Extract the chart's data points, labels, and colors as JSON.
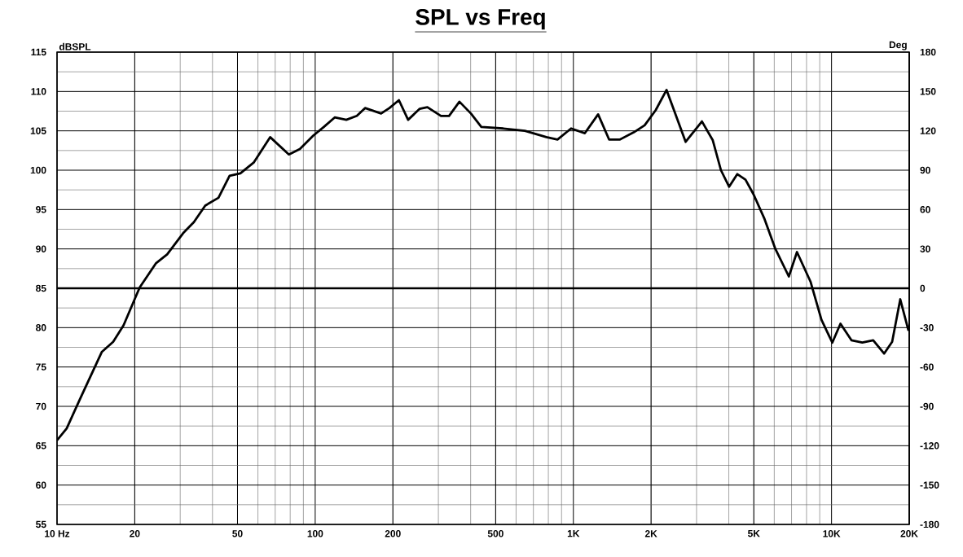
{
  "chart_data": {
    "type": "line",
    "title": "SPL vs Freq",
    "ylabel": "dBSPL",
    "y2label": "Deg",
    "log": "x",
    "grid": true,
    "marker": "none",
    "line_style": "solid",
    "xlim": [
      10,
      20000
    ],
    "ylim": [
      55,
      115
    ],
    "y2lim": [
      -180,
      180
    ],
    "xticks": [
      {
        "value": 10,
        "label": "10  Hz"
      },
      20,
      50,
      100,
      200,
      500,
      {
        "value": 1000,
        "label": "1K"
      },
      {
        "value": 2000,
        "label": "2K"
      },
      {
        "value": 5000,
        "label": "5K"
      },
      {
        "value": 10000,
        "label": "10K"
      },
      {
        "value": 20000,
        "label": "20K"
      }
    ],
    "yticks": [
      55,
      60,
      65,
      70,
      75,
      80,
      85,
      90,
      95,
      100,
      105,
      110,
      115
    ],
    "y2ticks": [
      -180,
      -150,
      -120,
      -90,
      -60,
      -30,
      0,
      30,
      60,
      90,
      120,
      150,
      180
    ],
    "ref_lines": [
      {
        "axis": "y2",
        "value": 0,
        "color": "#000000"
      }
    ],
    "series": [
      {
        "color": "#000000",
        "x": [
          10,
          10.9,
          12.3,
          14.9,
          16.5,
          18.1,
          20.9,
          24.2,
          26.7,
          30.8,
          33.9,
          37.5,
          42.2,
          46.6,
          51.3,
          57.9,
          66.9,
          79.1,
          87.2,
          98.3,
          108,
          119,
          132,
          145,
          156,
          180,
          194,
          211,
          229,
          254,
          272,
          307,
          330,
          362,
          401,
          440,
          535,
          649,
          786,
          868,
          980,
          1108,
          1247,
          1375,
          1516,
          1712,
          1888,
          2082,
          2296,
          2722,
          3148,
          3468,
          3730,
          4012,
          4316,
          4642,
          4994,
          5501,
          6060,
          6833,
          7348,
          8300,
          9140,
          10070,
          10830,
          11940,
          13160,
          14500,
          15980,
          17170,
          18460,
          19870
        ],
        "values": [
          65.7,
          67.2,
          71.0,
          76.9,
          78.2,
          80.3,
          85.1,
          88.2,
          89.3,
          92.0,
          93.4,
          95.5,
          96.5,
          99.3,
          99.6,
          101.0,
          104.2,
          102.0,
          102.7,
          104.4,
          105.5,
          106.7,
          106.4,
          106.9,
          107.9,
          107.2,
          107.9,
          108.9,
          106.4,
          107.8,
          108.0,
          106.9,
          106.9,
          108.7,
          107.2,
          105.5,
          105.3,
          105.0,
          104.2,
          103.9,
          105.3,
          104.7,
          107.1,
          103.9,
          103.9,
          104.8,
          105.7,
          107.6,
          110.2,
          103.6,
          106.2,
          103.8,
          100.0,
          97.9,
          99.5,
          98.8,
          96.9,
          93.8,
          90.0,
          86.5,
          89.6,
          85.8,
          81.0,
          78.1,
          80.5,
          78.4,
          78.1,
          78.4,
          76.7,
          78.2,
          83.6,
          79.6
        ]
      }
    ]
  }
}
